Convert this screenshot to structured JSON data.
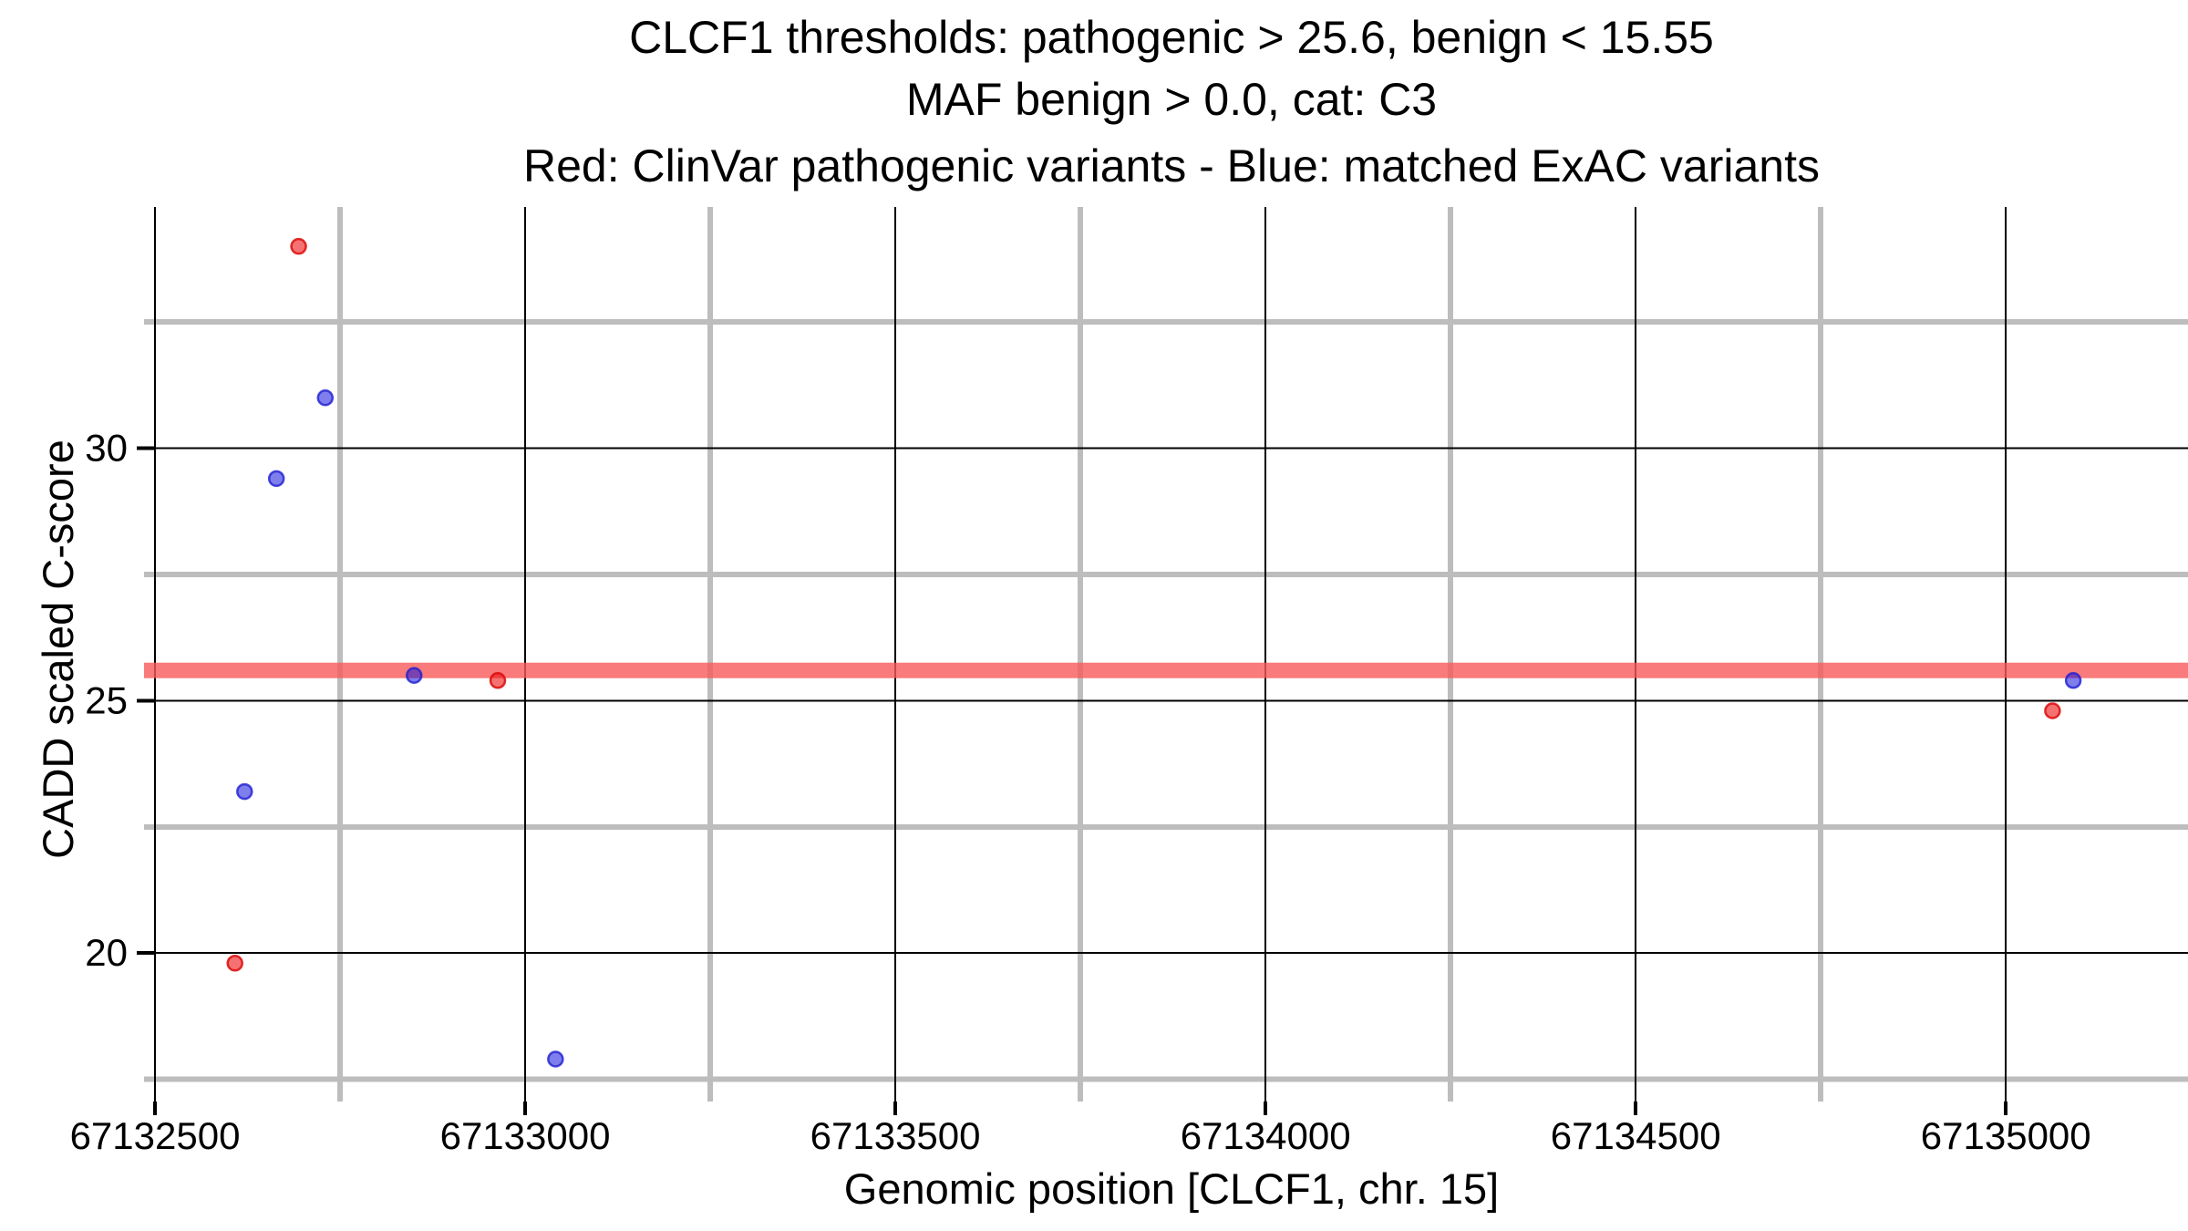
{
  "title": {
    "line1": "CLCF1 thresholds: pathogenic > 25.6, benign < 15.55",
    "line2": "MAF benign > 0.0, cat: C3",
    "line3": "Red: ClinVar pathogenic variants - Blue: matched ExAC variants"
  },
  "axes": {
    "x_title": "Genomic position [CLCF1, chr. 15]",
    "y_title": "CADD scaled C-score"
  },
  "colors": {
    "background": "#ffffff",
    "text": "#000000",
    "major_grid": "#000000",
    "minor_grid": "#bdbdbd",
    "threshold_band": "rgba(248,90,90,0.8)",
    "red_point_fill": "rgba(237,20,20,0.6)",
    "red_point_stroke": "rgba(220,10,10,0.85)",
    "blue_point_fill": "rgba(20,20,220,0.55)",
    "blue_point_stroke": "rgba(30,30,210,0.8)"
  },
  "chart_data": {
    "type": "scatter",
    "title": "CLCF1 thresholds: pathogenic > 25.6, benign < 15.55",
    "subtitle": "MAF benign > 0.0, cat: C3",
    "legend_note": "Red: ClinVar pathogenic variants - Blue: matched ExAC variants",
    "xlabel": "Genomic position [CLCF1, chr. 15]",
    "ylabel": "CADD scaled C-score",
    "xlim": [
      67132500,
      67135246
    ],
    "ylim": [
      17.06,
      34.78
    ],
    "x_major_ticks": [
      67132500,
      67133000,
      67133500,
      67134000,
      67134500,
      67135000
    ],
    "x_major_tick_labels": [
      "67132500",
      "67133000",
      "67133500",
      "67134000",
      "67134500",
      "67135000"
    ],
    "x_minor_ticks": [
      67132750,
      67133250,
      67133750,
      67134250,
      67134750
    ],
    "y_major_ticks": [
      20,
      25,
      30
    ],
    "y_major_tick_labels": [
      "20",
      "25",
      "30"
    ],
    "y_minor_ticks": [
      17.5,
      22.5,
      27.5,
      32.5
    ],
    "grid": "major+minor",
    "legend_position": "in-title",
    "threshold_band": {
      "y": 25.6,
      "meaning": "pathogenic CADD threshold"
    },
    "series": [
      {
        "name": "ClinVar pathogenic variants",
        "color": "red",
        "points": [
          {
            "x": 67132694,
            "y": 34.0
          },
          {
            "x": 67132608,
            "y": 19.8
          },
          {
            "x": 67132963,
            "y": 25.4
          },
          {
            "x": 67135063,
            "y": 24.8
          }
        ]
      },
      {
        "name": "matched ExAC variants",
        "color": "blue",
        "points": [
          {
            "x": 67132664,
            "y": 29.4
          },
          {
            "x": 67132730,
            "y": 31.0
          },
          {
            "x": 67132621,
            "y": 23.2
          },
          {
            "x": 67132850,
            "y": 25.5
          },
          {
            "x": 67133041,
            "y": 17.9
          },
          {
            "x": 67135091,
            "y": 25.4
          }
        ]
      }
    ]
  }
}
